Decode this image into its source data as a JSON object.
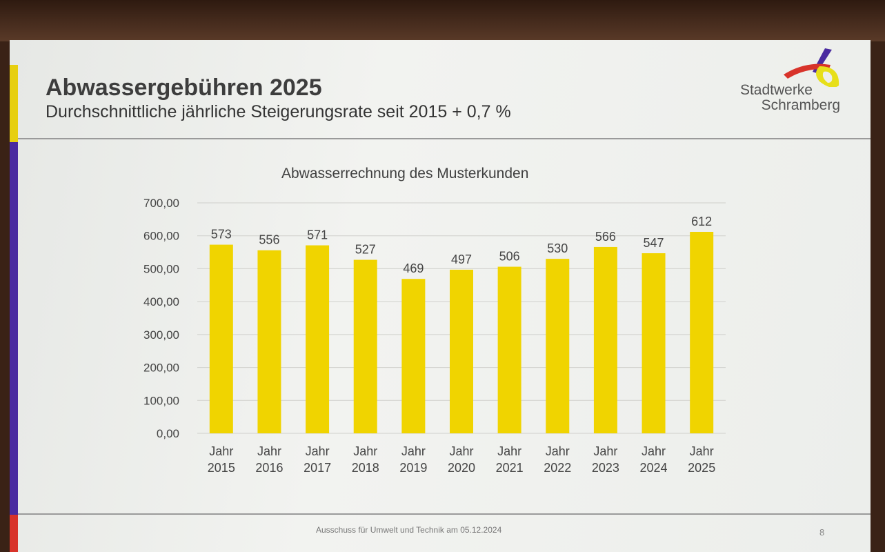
{
  "slide": {
    "title": "Abwassergebühren 2025",
    "subtitle": "Durchschnittliche jährliche Steigerungsrate seit 2015  + 0,7 %",
    "logo": {
      "line1": "Stadtwerke",
      "line2": "Schramberg"
    },
    "footer": "Ausschuss für Umwelt und Technik am 05.12.2024",
    "page_number": "8"
  },
  "colors": {
    "bar": "#f0d400",
    "yellow": "#e7cf10",
    "purple": "#4a2ba0",
    "red": "#d8332a"
  },
  "chart_data": {
    "type": "bar",
    "title": "Abwasserrechnung des Musterkunden",
    "categories": [
      [
        "Jahr",
        "2015"
      ],
      [
        "Jahr",
        "2016"
      ],
      [
        "Jahr",
        "2017"
      ],
      [
        "Jahr",
        "2018"
      ],
      [
        "Jahr",
        "2019"
      ],
      [
        "Jahr",
        "2020"
      ],
      [
        "Jahr",
        "2021"
      ],
      [
        "Jahr",
        "2022"
      ],
      [
        "Jahr",
        "2023"
      ],
      [
        "Jahr",
        "2024"
      ],
      [
        "Jahr",
        "2025"
      ]
    ],
    "values": [
      573,
      556,
      571,
      527,
      469,
      497,
      506,
      530,
      566,
      547,
      612
    ],
    "data_labels": [
      "573",
      "556",
      "571",
      "527",
      "469",
      "497",
      "506",
      "530",
      "566",
      "547",
      "612"
    ],
    "ylim": [
      0,
      700
    ],
    "yticks": [
      "0,00",
      "100,00",
      "200,00",
      "300,00",
      "400,00",
      "500,00",
      "600,00",
      "700,00"
    ],
    "grid": true,
    "xlabel": "",
    "ylabel": ""
  }
}
